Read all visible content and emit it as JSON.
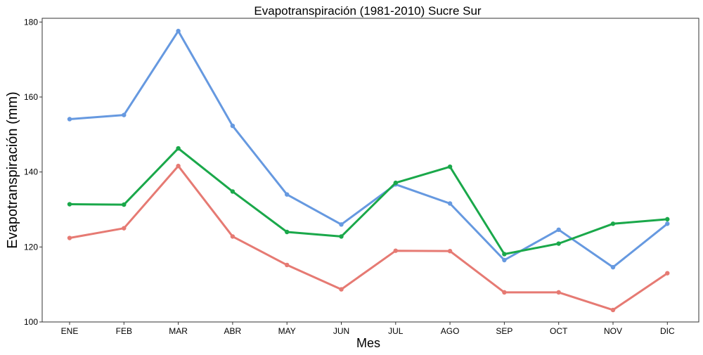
{
  "chart_data": {
    "type": "line",
    "title": "Evapotranspiración (1981-2010)  Sucre Sur",
    "xlabel": "Mes",
    "ylabel": "Evapotranspiración (mm)",
    "categories": [
      "ENE",
      "FEB",
      "MAR",
      "ABR",
      "MAY",
      "JUN",
      "JUL",
      "AGO",
      "SEP",
      "OCT",
      "NOV",
      "DIC"
    ],
    "ylim": [
      100,
      181
    ],
    "yticks": [
      100,
      120,
      140,
      160,
      180
    ],
    "grid": false,
    "legend": "none",
    "series": [
      {
        "color": "#6699e0",
        "values": [
          154.1,
          155.2,
          177.6,
          152.3,
          134.0,
          126.0,
          136.7,
          131.6,
          116.5,
          124.6,
          114.6,
          126.2
        ]
      },
      {
        "color": "#1aa84a",
        "values": [
          131.4,
          131.3,
          146.3,
          134.8,
          124.0,
          122.8,
          137.1,
          141.4,
          118.1,
          120.9,
          126.2,
          127.4
        ]
      },
      {
        "color": "#e67a73",
        "values": [
          122.4,
          125.0,
          141.6,
          122.8,
          115.2,
          108.7,
          119.0,
          118.9,
          107.9,
          107.9,
          103.2,
          113.0
        ]
      }
    ]
  }
}
